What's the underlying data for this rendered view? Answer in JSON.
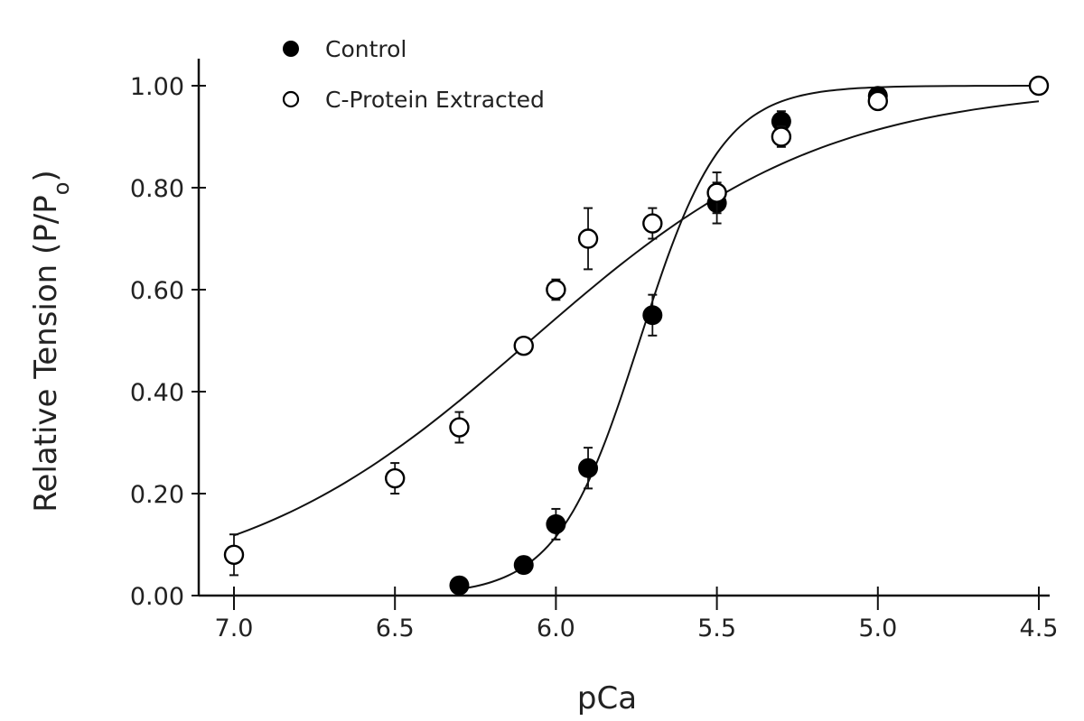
{
  "chart_data": {
    "type": "scatter",
    "title": "",
    "xlabel": "pCa",
    "ylabel": "Relative Tension (P/P",
    "ylabel_sub": "o",
    "ylabel_close": ")",
    "xlim": [
      7.1,
      4.5
    ],
    "ylim": [
      0.0,
      1.05
    ],
    "x_reversed": true,
    "x_ticks": [
      7.0,
      6.5,
      6.0,
      5.5,
      5.0,
      4.5
    ],
    "x_tick_labels": [
      "7.0",
      "6.5",
      "6.0",
      "5.5",
      "5.0",
      "4.5"
    ],
    "y_ticks": [
      0.0,
      0.2,
      0.4,
      0.6,
      0.8,
      1.0
    ],
    "y_tick_labels": [
      "0.00",
      "0.20",
      "0.40",
      "0.60",
      "0.80",
      "1.00"
    ],
    "grid": false,
    "legend_position": "top-left",
    "series": [
      {
        "name": "Control",
        "marker": "filled-circle",
        "color": "#000000",
        "x": [
          6.3,
          6.1,
          6.0,
          5.9,
          5.7,
          5.5,
          5.3,
          5.0,
          4.5
        ],
        "y": [
          0.02,
          0.06,
          0.14,
          0.25,
          0.55,
          0.77,
          0.93,
          0.98,
          1.0
        ],
        "err": [
          0.0,
          0.0,
          0.03,
          0.04,
          0.04,
          0.04,
          0.02,
          0.0,
          0.0
        ]
      },
      {
        "name": "C-Protein Extracted",
        "marker": "open-circle",
        "color": "#000000",
        "x": [
          7.0,
          6.5,
          6.3,
          6.1,
          6.0,
          5.9,
          5.7,
          5.5,
          5.3,
          5.0,
          4.5
        ],
        "y": [
          0.08,
          0.23,
          0.33,
          0.49,
          0.6,
          0.7,
          0.73,
          0.79,
          0.9,
          0.97,
          1.0
        ],
        "err": [
          0.04,
          0.03,
          0.03,
          0.0,
          0.02,
          0.06,
          0.03,
          0.04,
          0.02,
          0.0,
          0.0
        ]
      }
    ]
  }
}
